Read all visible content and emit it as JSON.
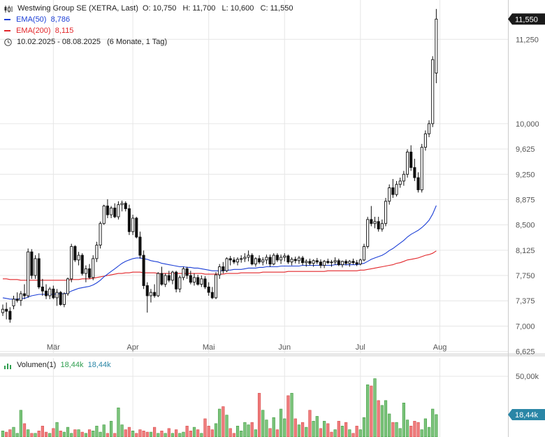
{
  "header": {
    "title": "Westwing Group SE (XETRA, Last)",
    "ohlc": "O: 10,750   H: 11,700   L: 10,600   C: 11,550",
    "ema50_label": "EMA(50)",
    "ema50_value": "8,786",
    "ema200_label": "EMA(200)",
    "ema200_value": "8,115",
    "range": "10.02.2025 - 08.08.2025",
    "range_note": "(6 Monate, 1 Tag)",
    "volume_label": "Volumen(1)",
    "volume_value_a": "18,44k",
    "volume_value_b": "18,44k"
  },
  "colors": {
    "up": "#ffffff",
    "down": "#111111",
    "ema50": "#1c3fd6",
    "ema200": "#e2262a",
    "vol_up": "#7cc47c",
    "vol_down": "#ef7c7c",
    "grid": "#e6e6e6",
    "tag_price": "#1a1a1a",
    "tag_vol": "#2a86a6",
    "vol_text": "#2a86a6"
  },
  "chart_data": {
    "type": "candlestick",
    "x_labels": [
      "Mär",
      "Apr",
      "Mai",
      "Jun",
      "Jul",
      "Aug"
    ],
    "y_ticks": [
      "11,250",
      "10,000",
      "9,625",
      "9,250",
      "8,875",
      "8,500",
      "8,125",
      "7,750",
      "7,375",
      "7,000",
      "6,625"
    ],
    "y_tick_values": [
      11.25,
      10.0,
      9.625,
      9.25,
      8.875,
      8.5,
      8.125,
      7.75,
      7.375,
      7.0,
      6.625
    ],
    "ylim": [
      6.6,
      11.75
    ],
    "last_price": "11,550",
    "last_price_value": 11.55,
    "volume_ticks": [
      "50,00k"
    ],
    "volume_tick_values": [
      50000
    ],
    "last_volume": "18,44k",
    "last_volume_value": 18440,
    "month_start_index": [
      14,
      36,
      57,
      78,
      99,
      121
    ],
    "ohlc": [
      [
        7.2,
        7.32,
        7.15,
        7.25
      ],
      [
        7.25,
        7.35,
        7.1,
        7.22
      ],
      [
        7.22,
        7.28,
        7.05,
        7.1
      ],
      [
        7.3,
        7.45,
        7.25,
        7.4
      ],
      [
        7.4,
        7.5,
        7.35,
        7.38
      ],
      [
        7.38,
        7.52,
        7.3,
        7.48
      ],
      [
        7.48,
        7.62,
        7.4,
        7.45
      ],
      [
        7.45,
        8.15,
        7.42,
        8.1
      ],
      [
        8.1,
        8.14,
        7.7,
        7.75
      ],
      [
        7.75,
        8.05,
        7.7,
        8.0
      ],
      [
        8.0,
        8.08,
        7.55,
        7.58
      ],
      [
        7.58,
        7.7,
        7.45,
        7.52
      ],
      [
        7.52,
        7.62,
        7.4,
        7.45
      ],
      [
        7.45,
        7.58,
        7.4,
        7.55
      ],
      [
        7.55,
        7.6,
        7.4,
        7.42
      ],
      [
        7.42,
        7.55,
        7.3,
        7.5
      ],
      [
        7.5,
        7.52,
        7.3,
        7.32
      ],
      [
        7.32,
        7.5,
        7.28,
        7.48
      ],
      [
        7.48,
        7.72,
        7.45,
        7.7
      ],
      [
        7.7,
        8.22,
        7.65,
        8.18
      ],
      [
        8.18,
        8.2,
        7.95,
        7.98
      ],
      [
        7.98,
        8.1,
        7.9,
        8.05
      ],
      [
        8.05,
        8.08,
        7.75,
        7.78
      ],
      [
        7.78,
        7.9,
        7.65,
        7.85
      ],
      [
        7.85,
        7.92,
        7.7,
        7.72
      ],
      [
        7.72,
        8.05,
        7.68,
        8.0
      ],
      [
        8.0,
        8.25,
        7.95,
        8.2
      ],
      [
        8.2,
        8.55,
        8.15,
        8.52
      ],
      [
        8.52,
        8.8,
        8.5,
        8.78
      ],
      [
        8.78,
        8.88,
        8.6,
        8.65
      ],
      [
        8.65,
        8.78,
        8.6,
        8.75
      ],
      [
        8.75,
        8.82,
        8.6,
        8.62
      ],
      [
        8.62,
        8.85,
        8.58,
        8.8
      ],
      [
        8.8,
        8.86,
        8.7,
        8.82
      ],
      [
        8.82,
        8.85,
        8.7,
        8.74
      ],
      [
        8.74,
        8.8,
        8.35,
        8.4
      ],
      [
        8.4,
        8.65,
        8.35,
        8.6
      ],
      [
        8.6,
        8.62,
        8.3,
        8.32
      ],
      [
        8.32,
        8.4,
        8.0,
        8.05
      ],
      [
        8.05,
        8.12,
        7.55,
        7.6
      ],
      [
        7.6,
        7.65,
        7.2,
        7.45
      ],
      [
        7.45,
        7.55,
        7.35,
        7.5
      ],
      [
        7.5,
        7.62,
        7.42,
        7.45
      ],
      [
        7.45,
        7.8,
        7.43,
        7.78
      ],
      [
        7.78,
        7.88,
        7.6,
        7.62
      ],
      [
        7.62,
        7.78,
        7.58,
        7.75
      ],
      [
        7.75,
        7.82,
        7.65,
        7.68
      ],
      [
        7.68,
        7.82,
        7.62,
        7.8
      ],
      [
        7.8,
        7.82,
        7.5,
        7.55
      ],
      [
        7.55,
        7.75,
        7.5,
        7.72
      ],
      [
        7.72,
        7.88,
        7.68,
        7.85
      ],
      [
        7.85,
        7.88,
        7.7,
        7.75
      ],
      [
        7.75,
        7.82,
        7.62,
        7.65
      ],
      [
        7.65,
        7.78,
        7.6,
        7.72
      ],
      [
        7.72,
        7.76,
        7.6,
        7.62
      ],
      [
        7.62,
        7.75,
        7.58,
        7.7
      ],
      [
        7.7,
        7.74,
        7.55,
        7.58
      ],
      [
        7.58,
        7.65,
        7.45,
        7.5
      ],
      [
        7.5,
        7.58,
        7.4,
        7.42
      ],
      [
        7.42,
        7.8,
        7.4,
        7.76
      ],
      [
        7.76,
        7.92,
        7.7,
        7.88
      ],
      [
        7.88,
        7.95,
        7.78,
        7.82
      ],
      [
        7.82,
        8.02,
        7.8,
        8.0
      ],
      [
        8.0,
        8.04,
        7.9,
        7.98
      ],
      [
        7.98,
        8.02,
        7.92,
        7.95
      ],
      [
        7.95,
        8.02,
        7.9,
        7.99
      ],
      [
        7.99,
        8.05,
        7.94,
        8.0
      ],
      [
        8.0,
        8.08,
        7.95,
        8.02
      ],
      [
        8.02,
        8.12,
        7.96,
        8.05
      ],
      [
        8.05,
        8.08,
        7.9,
        7.92
      ],
      [
        7.92,
        8.02,
        7.88,
        8.0
      ],
      [
        8.0,
        8.05,
        7.92,
        7.95
      ],
      [
        7.95,
        8.02,
        7.9,
        7.98
      ],
      [
        7.98,
        8.06,
        7.92,
        8.02
      ],
      [
        8.02,
        8.06,
        7.88,
        7.92
      ],
      [
        7.92,
        8.08,
        7.9,
        8.05
      ],
      [
        8.05,
        8.08,
        7.95,
        7.98
      ],
      [
        7.98,
        8.06,
        7.92,
        8.02
      ],
      [
        8.02,
        8.08,
        7.96,
        8.04
      ],
      [
        8.04,
        8.06,
        7.92,
        7.95
      ],
      [
        7.95,
        8.02,
        7.9,
        7.99
      ],
      [
        7.99,
        8.03,
        7.93,
        7.97
      ],
      [
        7.97,
        8.04,
        7.92,
        8.01
      ],
      [
        8.01,
        8.04,
        7.9,
        7.94
      ],
      [
        7.94,
        7.99,
        7.88,
        7.96
      ],
      [
        7.96,
        8.0,
        7.9,
        7.93
      ],
      [
        7.93,
        7.99,
        7.88,
        7.97
      ],
      [
        7.97,
        8.01,
        7.92,
        7.95
      ],
      [
        7.95,
        7.99,
        7.86,
        7.9
      ],
      [
        7.9,
        7.98,
        7.86,
        7.96
      ],
      [
        7.96,
        8.0,
        7.92,
        7.94
      ],
      [
        7.94,
        7.98,
        7.88,
        7.95
      ],
      [
        7.95,
        8.02,
        7.91,
        7.97
      ],
      [
        7.97,
        8.0,
        7.89,
        7.91
      ],
      [
        7.91,
        7.97,
        7.87,
        7.96
      ],
      [
        7.96,
        7.99,
        7.9,
        7.93
      ],
      [
        7.93,
        7.98,
        7.88,
        7.96
      ],
      [
        7.96,
        8.0,
        7.91,
        7.94
      ],
      [
        7.94,
        7.98,
        7.89,
        7.92
      ],
      [
        7.92,
        8.0,
        7.9,
        7.98
      ],
      [
        7.98,
        8.22,
        7.96,
        8.18
      ],
      [
        8.18,
        8.62,
        8.15,
        8.58
      ],
      [
        8.58,
        8.78,
        8.48,
        8.52
      ],
      [
        8.52,
        8.62,
        8.45,
        8.55
      ],
      [
        8.55,
        8.62,
        8.4,
        8.44
      ],
      [
        8.44,
        8.58,
        8.4,
        8.52
      ],
      [
        8.52,
        8.9,
        8.48,
        8.85
      ],
      [
        8.85,
        9.1,
        8.8,
        9.05
      ],
      [
        9.05,
        9.18,
        8.9,
        8.95
      ],
      [
        8.95,
        9.15,
        8.92,
        9.1
      ],
      [
        9.1,
        9.2,
        9.05,
        9.15
      ],
      [
        9.15,
        9.3,
        9.08,
        9.25
      ],
      [
        9.25,
        9.62,
        9.2,
        9.58
      ],
      [
        9.58,
        9.68,
        9.3,
        9.35
      ],
      [
        9.35,
        9.48,
        9.15,
        9.2
      ],
      [
        9.2,
        9.28,
        8.98,
        9.02
      ],
      [
        9.02,
        9.7,
        8.98,
        9.65
      ],
      [
        9.65,
        9.9,
        9.6,
        9.85
      ],
      [
        9.85,
        10.05,
        9.8,
        10.0
      ],
      [
        10.0,
        11.0,
        9.95,
        10.95
      ],
      [
        10.75,
        11.7,
        10.6,
        11.55
      ]
    ],
    "ema50": [
      7.42,
      7.41,
      7.4,
      7.4,
      7.4,
      7.41,
      7.41,
      7.43,
      7.45,
      7.46,
      7.47,
      7.47,
      7.47,
      7.47,
      7.47,
      7.48,
      7.48,
      7.48,
      7.49,
      7.52,
      7.54,
      7.56,
      7.57,
      7.58,
      7.59,
      7.61,
      7.64,
      7.68,
      7.73,
      7.77,
      7.81,
      7.85,
      7.89,
      7.93,
      7.96,
      7.98,
      8.0,
      8.01,
      8.01,
      8.0,
      7.99,
      7.97,
      7.96,
      7.95,
      7.93,
      7.92,
      7.91,
      7.9,
      7.89,
      7.88,
      7.88,
      7.87,
      7.87,
      7.86,
      7.86,
      7.85,
      7.84,
      7.83,
      7.82,
      7.82,
      7.82,
      7.82,
      7.83,
      7.83,
      7.84,
      7.84,
      7.84,
      7.85,
      7.86,
      7.86,
      7.86,
      7.87,
      7.87,
      7.88,
      7.88,
      7.88,
      7.88,
      7.89,
      7.89,
      7.89,
      7.89,
      7.89,
      7.89,
      7.9,
      7.9,
      7.9,
      7.9,
      7.9,
      7.9,
      7.9,
      7.9,
      7.9,
      7.91,
      7.91,
      7.91,
      7.91,
      7.91,
      7.91,
      7.91,
      7.92,
      7.93,
      7.96,
      7.99,
      8.01,
      8.03,
      8.05,
      8.08,
      8.12,
      8.15,
      8.19,
      8.23,
      8.27,
      8.32,
      8.36,
      8.39,
      8.42,
      8.46,
      8.51,
      8.57,
      8.66,
      8.786
    ],
    "ema200": [
      7.7,
      7.7,
      7.69,
      7.69,
      7.69,
      7.68,
      7.68,
      7.68,
      7.68,
      7.68,
      7.68,
      7.68,
      7.68,
      7.68,
      7.68,
      7.68,
      7.68,
      7.68,
      7.68,
      7.69,
      7.69,
      7.69,
      7.7,
      7.7,
      7.7,
      7.71,
      7.72,
      7.73,
      7.74,
      7.75,
      7.76,
      7.77,
      7.78,
      7.78,
      7.79,
      7.79,
      7.8,
      7.8,
      7.8,
      7.79,
      7.79,
      7.79,
      7.79,
      7.78,
      7.78,
      7.78,
      7.78,
      7.78,
      7.78,
      7.78,
      7.78,
      7.78,
      7.78,
      7.78,
      7.78,
      7.78,
      7.77,
      7.77,
      7.77,
      7.77,
      7.77,
      7.77,
      7.78,
      7.78,
      7.78,
      7.78,
      7.79,
      7.79,
      7.79,
      7.79,
      7.79,
      7.79,
      7.8,
      7.8,
      7.8,
      7.8,
      7.8,
      7.8,
      7.8,
      7.81,
      7.81,
      7.81,
      7.81,
      7.81,
      7.81,
      7.81,
      7.81,
      7.81,
      7.81,
      7.81,
      7.82,
      7.82,
      7.82,
      7.82,
      7.82,
      7.82,
      7.82,
      7.82,
      7.82,
      7.83,
      7.83,
      7.84,
      7.85,
      7.86,
      7.87,
      7.88,
      7.89,
      7.9,
      7.91,
      7.93,
      7.94,
      7.96,
      7.98,
      7.99,
      8.0,
      8.01,
      8.03,
      8.05,
      8.06,
      8.08,
      8.115
    ],
    "volume": [
      5000,
      4000,
      6000,
      8000,
      3000,
      22000,
      11000,
      6000,
      3000,
      3000,
      5000,
      9000,
      4000,
      3000,
      7000,
      12000,
      5000,
      4000,
      8000,
      3000,
      6000,
      6000,
      4000,
      3000,
      6000,
      5000,
      9000,
      4000,
      10000,
      3000,
      13000,
      3000,
      24000,
      10000,
      6000,
      8000,
      5000,
      3000,
      6000,
      5000,
      4000,
      4000,
      8000,
      3000,
      5000,
      3000,
      7000,
      3000,
      6000,
      3000,
      4000,
      9000,
      5000,
      8000,
      6000,
      3000,
      15000,
      9000,
      6000,
      11000,
      23000,
      25000,
      18000,
      7000,
      3000,
      9000,
      5000,
      12000,
      10000,
      12000,
      6000,
      36000,
      22000,
      14000,
      7000,
      16000,
      6000,
      23000,
      15000,
      34000,
      36000,
      15000,
      10000,
      12000,
      8000,
      22000,
      13000,
      17000,
      7000,
      13000,
      11000,
      4000,
      6000,
      13000,
      9000,
      12000,
      6000,
      3000,
      9000,
      6000,
      16000,
      43000,
      42000,
      48000,
      30000,
      26000,
      30000,
      19000,
      12000,
      12000,
      7000,
      28000,
      14000,
      9000,
      13000,
      12000,
      6000,
      15000,
      8000,
      23000,
      18440
    ],
    "volume_up": [
      1,
      0,
      0,
      1,
      1,
      1,
      0,
      1,
      0,
      1,
      0,
      0,
      0,
      1,
      0,
      1,
      0,
      1,
      1,
      1,
      0,
      1,
      0,
      1,
      0,
      1,
      1,
      1,
      1,
      0,
      1,
      0,
      1,
      1,
      0,
      0,
      1,
      0,
      0,
      0,
      0,
      1,
      0,
      1,
      0,
      1,
      0,
      1,
      0,
      1,
      1,
      0,
      0,
      1,
      0,
      1,
      0,
      0,
      0,
      1,
      1,
      0,
      1,
      0,
      0,
      1,
      1,
      1,
      1,
      0,
      1,
      0,
      1,
      1,
      0,
      1,
      0,
      1,
      1,
      0,
      1,
      0,
      1,
      0,
      1,
      0,
      1,
      1,
      0,
      1,
      0,
      0,
      1,
      0,
      1,
      0,
      1,
      0,
      0,
      1,
      1,
      1,
      0,
      1,
      0,
      1,
      1,
      1,
      0,
      1,
      1,
      1,
      1,
      0,
      0,
      0,
      1,
      1,
      1,
      1,
      1
    ]
  }
}
